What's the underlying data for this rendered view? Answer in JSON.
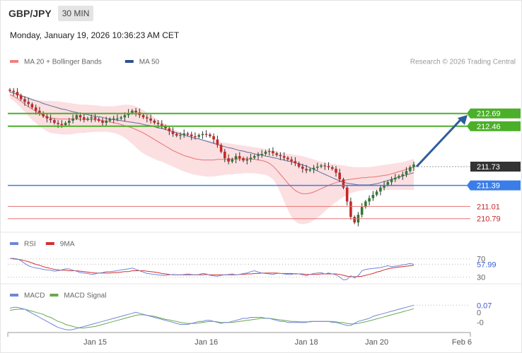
{
  "header": {
    "symbol": "GBP/JPY",
    "timeframe": "30 MIN",
    "datetime": "Monday, January 19, 2026 10:36:23 AM CET"
  },
  "colors": {
    "bull": "#2e7d32",
    "bear": "#c62828",
    "ma20": "#e57373",
    "band_fill": "#fbd9dc",
    "ma50": "#5c6f9c",
    "resistance": "#4caf2a",
    "support": "#3b7de8",
    "lower_level": "#e57373",
    "current": "#333333",
    "arrow": "#2e5d9c",
    "rsi": "#6f86d6",
    "rsi_ma": "#d32f2f",
    "macd": "#6f86d6",
    "macd_signal": "#6aa84f"
  },
  "chart_data": [
    {
      "type": "candlestick",
      "legend": [
        {
          "name": "MA 20 + Bollinger Bands",
          "color": "#f08080"
        },
        {
          "name": "MA 50",
          "color": "#2e5090"
        }
      ],
      "watermark": "Research © 2026 Trading Central",
      "ylim": [
        210.62,
        213.35
      ],
      "levels": [
        {
          "value": 212.69,
          "label": "212.69",
          "kind": "resistance"
        },
        {
          "value": 212.46,
          "label": "212.46",
          "kind": "resistance"
        },
        {
          "value": 211.73,
          "label": "211.73",
          "kind": "current"
        },
        {
          "value": 211.39,
          "label": "211.39",
          "kind": "support"
        },
        {
          "value": 211.01,
          "label": "211.01",
          "kind": "lower"
        },
        {
          "value": 210.79,
          "label": "210.79",
          "kind": "lower"
        }
      ],
      "arrow": {
        "from_value": 211.73,
        "to_value": 212.69
      },
      "close_series": [
        213.1,
        213.08,
        213.02,
        212.95,
        212.9,
        212.86,
        212.8,
        212.74,
        212.7,
        212.64,
        212.6,
        212.57,
        212.52,
        212.5,
        212.48,
        212.52,
        212.56,
        212.6,
        212.66,
        212.62,
        212.58,
        212.6,
        212.62,
        212.59,
        212.56,
        212.52,
        212.56,
        212.59,
        212.6,
        212.6,
        212.62,
        212.66,
        212.7,
        212.74,
        212.71,
        212.66,
        212.62,
        212.6,
        212.56,
        212.52,
        212.5,
        212.46,
        212.42,
        212.37,
        212.32,
        212.29,
        212.3,
        212.33,
        212.31,
        212.28,
        212.27,
        212.3,
        212.32,
        212.31,
        212.28,
        212.22,
        212.12,
        212.0,
        211.88,
        211.82,
        211.86,
        211.92,
        211.88,
        211.84,
        211.86,
        211.89,
        211.92,
        211.94,
        211.96,
        212.0,
        212.01,
        211.97,
        211.94,
        211.92,
        211.89,
        211.86,
        211.83,
        211.79,
        211.73,
        211.69,
        211.66,
        211.68,
        211.71,
        211.73,
        211.75,
        211.74,
        211.72,
        211.69,
        211.62,
        211.5,
        211.35,
        211.1,
        210.82,
        210.72,
        210.86,
        211.0,
        211.1,
        211.16,
        211.22,
        211.28,
        211.35,
        211.4,
        211.45,
        211.5,
        211.53,
        211.56,
        211.59,
        211.65,
        211.72,
        211.77
      ],
      "ma20_series": [
        213.03,
        213.0,
        212.96,
        212.91,
        212.86,
        212.81,
        212.77,
        212.73,
        212.69,
        212.66,
        212.63,
        212.61,
        212.6,
        212.59,
        212.59,
        212.59,
        212.59,
        212.59,
        212.59,
        212.59,
        212.58,
        212.58,
        212.58,
        212.58,
        212.57,
        212.56,
        212.55,
        212.54,
        212.52,
        212.51,
        212.49,
        212.47,
        212.45,
        212.43,
        212.4,
        212.37,
        212.34,
        212.3,
        212.26,
        212.22,
        212.18,
        212.14,
        212.1,
        212.06,
        212.02,
        211.99,
        211.96,
        211.93,
        211.91,
        211.89,
        211.87,
        211.86,
        211.85,
        211.85,
        211.85,
        211.85,
        211.86,
        211.86,
        211.86,
        211.86,
        211.87,
        211.87,
        211.87,
        211.87,
        211.87,
        211.87,
        211.86,
        211.85,
        211.84,
        211.82,
        211.79,
        211.74,
        211.67,
        211.59,
        211.51,
        211.43,
        211.36,
        211.3,
        211.26,
        211.24,
        211.24,
        211.25,
        211.27,
        211.3,
        211.33,
        211.36,
        211.39,
        211.42,
        211.44,
        211.46,
        211.48,
        211.49,
        211.5,
        211.51,
        211.52,
        211.53,
        211.53,
        211.54,
        211.54,
        211.55,
        211.56,
        211.57,
        211.58,
        211.6,
        211.62,
        211.64,
        211.66,
        211.68,
        211.7,
        211.72
      ],
      "bb_upper": [
        213.1,
        213.08,
        213.06,
        213.03,
        213.0,
        212.98,
        212.96,
        212.94,
        212.93,
        212.92,
        212.92,
        212.92,
        212.91,
        212.91,
        212.9,
        212.89,
        212.88,
        212.87,
        212.86,
        212.85,
        212.85,
        212.85,
        212.84,
        212.84,
        212.83,
        212.82,
        212.82,
        212.82,
        212.82,
        212.83,
        212.84,
        212.85,
        212.85,
        212.84,
        212.82,
        212.79,
        212.75,
        212.71,
        212.67,
        212.62,
        212.58,
        212.53,
        212.49,
        212.45,
        212.41,
        212.38,
        212.35,
        212.33,
        212.31,
        212.29,
        212.27,
        212.24,
        212.22,
        212.21,
        212.2,
        212.19,
        212.18,
        212.17,
        212.16,
        212.15,
        212.14,
        212.13,
        212.12,
        212.11,
        212.1,
        212.09,
        212.08,
        212.07,
        212.06,
        212.05,
        212.04,
        212.02,
        212.0,
        211.98,
        211.97,
        211.96,
        211.95,
        211.94,
        211.93,
        211.92,
        211.9,
        211.88,
        211.86,
        211.84,
        211.82,
        211.8,
        211.79,
        211.78,
        211.77,
        211.76,
        211.75,
        211.74,
        211.73,
        211.72,
        211.72,
        211.72,
        211.72,
        211.72,
        211.73,
        211.74,
        211.75,
        211.76,
        211.77,
        211.78,
        211.79,
        211.8,
        211.81,
        211.83,
        211.85,
        211.87
      ],
      "bb_lower": [
        212.96,
        212.92,
        212.86,
        212.79,
        212.72,
        212.64,
        212.58,
        212.52,
        212.46,
        212.41,
        212.37,
        212.34,
        212.33,
        212.32,
        212.31,
        212.31,
        212.31,
        212.32,
        212.33,
        212.34,
        212.34,
        212.35,
        212.35,
        212.36,
        212.36,
        212.36,
        212.36,
        212.35,
        212.34,
        212.32,
        212.29,
        212.25,
        212.2,
        212.14,
        212.08,
        212.02,
        211.97,
        211.93,
        211.9,
        211.87,
        211.84,
        211.82,
        211.79,
        211.76,
        211.73,
        211.7,
        211.67,
        211.64,
        211.62,
        211.6,
        211.58,
        211.57,
        211.56,
        211.55,
        211.55,
        211.55,
        211.56,
        211.57,
        211.58,
        211.59,
        211.59,
        211.6,
        211.6,
        211.61,
        211.61,
        211.61,
        211.61,
        211.6,
        211.59,
        211.58,
        211.55,
        211.5,
        211.4,
        211.26,
        211.1,
        210.95,
        210.82,
        210.74,
        210.7,
        210.69,
        210.7,
        210.72,
        210.76,
        210.81,
        210.86,
        210.92,
        210.98,
        211.04,
        211.09,
        211.14,
        211.18,
        211.22,
        211.25,
        211.27,
        211.29,
        211.3,
        211.31,
        211.31,
        211.31,
        211.31,
        211.31,
        211.31,
        211.31,
        211.31,
        211.31,
        211.31,
        211.31,
        211.31,
        211.31,
        211.31
      ],
      "ma50_series": [
        213.08,
        213.06,
        213.04,
        213.01,
        212.99,
        212.97,
        212.94,
        212.92,
        212.9,
        212.87,
        212.85,
        212.83,
        212.81,
        212.79,
        212.77,
        212.76,
        212.74,
        212.72,
        212.71,
        212.69,
        212.68,
        212.67,
        212.65,
        212.64,
        212.63,
        212.62,
        212.6,
        212.59,
        212.58,
        212.57,
        212.56,
        212.55,
        212.54,
        212.53,
        212.52,
        212.51,
        212.49,
        212.48,
        212.47,
        212.45,
        212.43,
        212.42,
        212.4,
        212.38,
        212.36,
        212.34,
        212.32,
        212.3,
        212.28,
        212.26,
        212.24,
        212.23,
        212.21,
        212.19,
        212.17,
        212.15,
        212.13,
        212.11,
        212.09,
        212.07,
        212.06,
        212.04,
        212.02,
        212.01,
        211.99,
        211.98,
        211.96,
        211.95,
        211.94,
        211.92,
        211.91,
        211.89,
        211.88,
        211.86,
        211.85,
        211.83,
        211.82,
        211.8,
        211.78,
        211.76,
        211.74,
        211.71,
        211.68,
        211.65,
        211.62,
        211.59,
        211.56,
        211.53,
        211.5,
        211.47,
        211.45,
        211.43,
        211.42,
        211.41,
        211.4,
        211.4,
        211.4,
        211.4,
        211.41,
        211.42,
        211.44,
        211.46,
        211.48,
        211.5,
        211.52,
        211.54,
        211.56,
        211.58,
        211.6,
        211.62
      ]
    },
    {
      "type": "line",
      "legend": [
        {
          "name": "RSI",
          "color": "#6f86d6"
        },
        {
          "name": "9MA",
          "color": "#d32f2f"
        }
      ],
      "ylim": [
        20,
        85
      ],
      "ref_levels": [
        {
          "value": 70,
          "label": "70"
        },
        {
          "value": 30,
          "label": "30"
        }
      ],
      "last_label": "57.99",
      "series": [
        {
          "name": "RSI",
          "values": [
            71,
            71,
            70,
            66,
            60,
            55,
            52,
            50,
            49,
            47,
            46,
            45,
            43,
            44,
            46,
            48,
            48,
            45,
            43,
            40,
            39,
            38,
            36,
            37,
            39,
            40,
            42,
            42,
            43,
            44,
            46,
            47,
            48,
            50,
            47,
            44,
            41,
            38,
            37,
            36,
            35,
            34,
            34,
            35,
            36,
            35,
            35,
            36,
            37,
            36,
            35,
            36,
            38,
            37,
            34,
            33,
            32,
            34,
            35,
            36,
            37,
            35,
            36,
            38,
            39,
            42,
            44,
            41,
            39,
            38,
            37,
            36,
            38,
            38,
            37,
            36,
            36,
            38,
            37,
            35,
            33,
            36,
            38,
            39,
            40,
            37,
            39,
            37,
            35,
            30,
            24,
            25,
            33,
            28,
            33,
            44,
            47,
            48,
            49,
            50,
            51,
            53,
            55,
            53,
            54,
            55,
            57,
            58,
            60,
            58
          ]
        },
        {
          "name": "9MA",
          "values": [
            71,
            70,
            69,
            68,
            66,
            64,
            61,
            58,
            56,
            53,
            51,
            49,
            47,
            46,
            45,
            45,
            44,
            44,
            44,
            43,
            42,
            41,
            40,
            39,
            39,
            39,
            39,
            39,
            40,
            40,
            41,
            42,
            42,
            44,
            44,
            44,
            44,
            43,
            42,
            41,
            40,
            38,
            37,
            36,
            35,
            35,
            35,
            35,
            35,
            35,
            35,
            35,
            35,
            36,
            35,
            35,
            35,
            35,
            35,
            35,
            35,
            35,
            36,
            36,
            37,
            37,
            38,
            38,
            39,
            39,
            39,
            39,
            39,
            38,
            38,
            38,
            38,
            37,
            37,
            37,
            36,
            36,
            36,
            36,
            37,
            37,
            37,
            37,
            37,
            36,
            34,
            32,
            31,
            31,
            31,
            32,
            34,
            36,
            38,
            41,
            43,
            46,
            48,
            50,
            51,
            52,
            53,
            54,
            55,
            56
          ]
        }
      ]
    },
    {
      "type": "line",
      "legend": [
        {
          "name": "MACD",
          "color": "#6f86d6"
        },
        {
          "name": "MACD Signal",
          "color": "#6aa84f"
        }
      ],
      "ylim": [
        -0.2,
        0.1
      ],
      "ref_levels": [
        {
          "value": 0,
          "label": "0"
        },
        {
          "value": -0.1,
          "label": "-0"
        }
      ],
      "last_label": "0.07",
      "series": [
        {
          "name": "MACD",
          "values": [
            0.04,
            0.05,
            0.05,
            0.04,
            0.03,
            0.01,
            -0.01,
            -0.03,
            -0.05,
            -0.07,
            -0.09,
            -0.11,
            -0.13,
            -0.15,
            -0.16,
            -0.17,
            -0.175,
            -0.17,
            -0.16,
            -0.15,
            -0.14,
            -0.13,
            -0.12,
            -0.11,
            -0.1,
            -0.09,
            -0.08,
            -0.07,
            -0.06,
            -0.05,
            -0.04,
            -0.03,
            -0.02,
            -0.01,
            0.0,
            -0.01,
            -0.02,
            -0.03,
            -0.04,
            -0.05,
            -0.06,
            -0.07,
            -0.08,
            -0.09,
            -0.1,
            -0.11,
            -0.12,
            -0.12,
            -0.12,
            -0.11,
            -0.1,
            -0.09,
            -0.09,
            -0.08,
            -0.08,
            -0.09,
            -0.1,
            -0.11,
            -0.1,
            -0.1,
            -0.09,
            -0.08,
            -0.07,
            -0.06,
            -0.06,
            -0.05,
            -0.05,
            -0.05,
            -0.05,
            -0.06,
            -0.06,
            -0.07,
            -0.08,
            -0.09,
            -0.09,
            -0.1,
            -0.1,
            -0.1,
            -0.1,
            -0.1,
            -0.1,
            -0.09,
            -0.09,
            -0.09,
            -0.09,
            -0.09,
            -0.09,
            -0.1,
            -0.1,
            -0.11,
            -0.12,
            -0.13,
            -0.13,
            -0.11,
            -0.09,
            -0.08,
            -0.07,
            -0.06,
            -0.04,
            -0.03,
            -0.02,
            -0.01,
            0.0,
            0.01,
            0.02,
            0.03,
            0.04,
            0.05,
            0.06,
            0.07
          ]
        },
        {
          "name": "MACD Signal",
          "values": [
            0.02,
            0.025,
            0.03,
            0.03,
            0.03,
            0.02,
            0.01,
            0.0,
            -0.01,
            -0.02,
            -0.04,
            -0.05,
            -0.07,
            -0.09,
            -0.1,
            -0.12,
            -0.13,
            -0.14,
            -0.15,
            -0.155,
            -0.155,
            -0.15,
            -0.145,
            -0.14,
            -0.13,
            -0.12,
            -0.11,
            -0.1,
            -0.09,
            -0.08,
            -0.07,
            -0.06,
            -0.05,
            -0.04,
            -0.03,
            -0.025,
            -0.025,
            -0.03,
            -0.035,
            -0.04,
            -0.05,
            -0.06,
            -0.07,
            -0.075,
            -0.085,
            -0.09,
            -0.1,
            -0.105,
            -0.11,
            -0.11,
            -0.11,
            -0.105,
            -0.1,
            -0.095,
            -0.09,
            -0.09,
            -0.095,
            -0.1,
            -0.1,
            -0.1,
            -0.1,
            -0.095,
            -0.09,
            -0.085,
            -0.08,
            -0.075,
            -0.07,
            -0.065,
            -0.06,
            -0.06,
            -0.06,
            -0.065,
            -0.07,
            -0.075,
            -0.08,
            -0.085,
            -0.09,
            -0.09,
            -0.095,
            -0.095,
            -0.095,
            -0.095,
            -0.09,
            -0.09,
            -0.09,
            -0.09,
            -0.09,
            -0.09,
            -0.095,
            -0.1,
            -0.1,
            -0.11,
            -0.115,
            -0.115,
            -0.11,
            -0.1,
            -0.095,
            -0.085,
            -0.075,
            -0.065,
            -0.055,
            -0.045,
            -0.035,
            -0.025,
            -0.015,
            -0.005,
            0.005,
            0.015,
            0.025,
            0.035
          ]
        }
      ]
    }
  ],
  "x_axis": {
    "ticks": [
      {
        "label": "Jan 15",
        "index": 23
      },
      {
        "label": "Jan 16",
        "index": 53
      },
      {
        "label": "Jan 18",
        "index": 80
      },
      {
        "label": "Jan 20",
        "index": 99
      },
      {
        "label": "Feb 6",
        "index": 112
      }
    ]
  }
}
